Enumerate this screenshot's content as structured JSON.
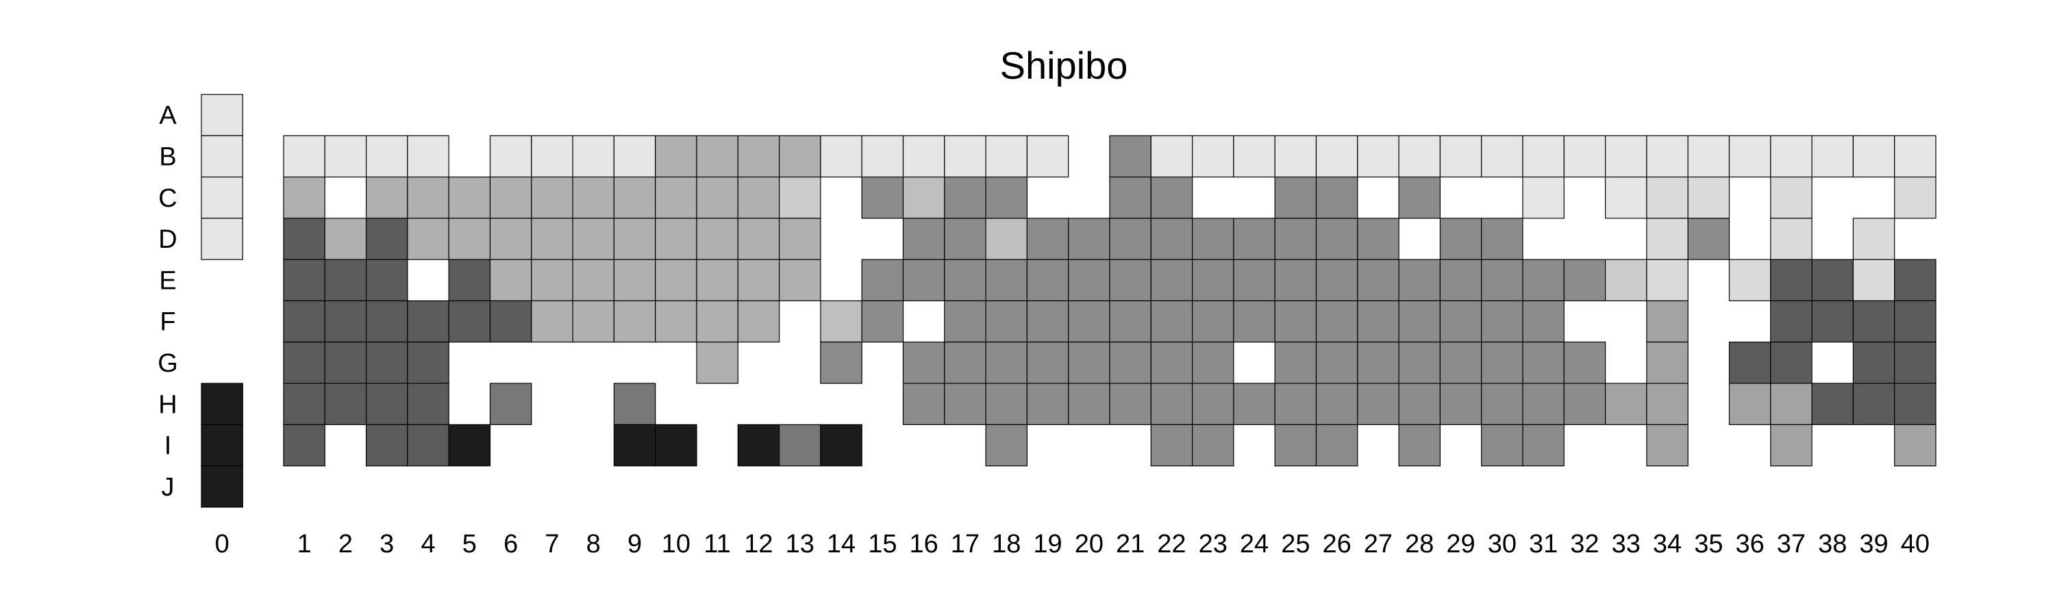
{
  "chart_data": {
    "type": "heatmap",
    "title": "Shipibo",
    "rows": [
      "A",
      "B",
      "C",
      "D",
      "E",
      "F",
      "G",
      "H",
      "I",
      "J"
    ],
    "columns": [
      "0",
      "1",
      "2",
      "3",
      "4",
      "5",
      "6",
      "7",
      "8",
      "9",
      "10",
      "11",
      "12",
      "13",
      "14",
      "15",
      "16",
      "17",
      "18",
      "19",
      "20",
      "21",
      "22",
      "23",
      "24",
      "25",
      "26",
      "27",
      "28",
      "29",
      "30",
      "31",
      "32",
      "33",
      "34",
      "35",
      "36",
      "37",
      "38",
      "39",
      "40"
    ],
    "grid": false,
    "legend": "none",
    "colors": {
      "1": "#e6e6e6",
      "2": "#dadada",
      "3": "#cccccc",
      "4": "#bfbfbf",
      "5": "#b0b0b0",
      "6": "#a3a3a3",
      "7": "#8c8c8c",
      "8": "#787878",
      "9": "#5c5c5c",
      "10": "#1c1c1c"
    },
    "cells": [
      {
        "col": "0",
        "row": "A",
        "v": 1
      },
      {
        "col": "0",
        "row": "B",
        "v": 1
      },
      {
        "col": "0",
        "row": "C",
        "v": 1
      },
      {
        "col": "0",
        "row": "D",
        "v": 1
      },
      {
        "col": "0",
        "row": "H",
        "v": 10
      },
      {
        "col": "0",
        "row": "I",
        "v": 10
      },
      {
        "col": "0",
        "row": "J",
        "v": 10
      },
      {
        "col": "1",
        "row": "B",
        "v": 1
      },
      {
        "col": "1",
        "row": "C",
        "v": 5
      },
      {
        "col": "1",
        "row": "D",
        "v": 9
      },
      {
        "col": "1",
        "row": "E",
        "v": 9
      },
      {
        "col": "1",
        "row": "F",
        "v": 9
      },
      {
        "col": "1",
        "row": "G",
        "v": 9
      },
      {
        "col": "1",
        "row": "H",
        "v": 9
      },
      {
        "col": "1",
        "row": "I",
        "v": 9
      },
      {
        "col": "2",
        "row": "B",
        "v": 1
      },
      {
        "col": "2",
        "row": "D",
        "v": 5
      },
      {
        "col": "2",
        "row": "E",
        "v": 9
      },
      {
        "col": "2",
        "row": "F",
        "v": 9
      },
      {
        "col": "2",
        "row": "G",
        "v": 9
      },
      {
        "col": "2",
        "row": "H",
        "v": 9
      },
      {
        "col": "3",
        "row": "B",
        "v": 1
      },
      {
        "col": "3",
        "row": "C",
        "v": 5
      },
      {
        "col": "3",
        "row": "D",
        "v": 9
      },
      {
        "col": "3",
        "row": "E",
        "v": 9
      },
      {
        "col": "3",
        "row": "F",
        "v": 9
      },
      {
        "col": "3",
        "row": "G",
        "v": 9
      },
      {
        "col": "3",
        "row": "H",
        "v": 9
      },
      {
        "col": "3",
        "row": "I",
        "v": 9
      },
      {
        "col": "4",
        "row": "B",
        "v": 1
      },
      {
        "col": "4",
        "row": "C",
        "v": 5
      },
      {
        "col": "4",
        "row": "D",
        "v": 5
      },
      {
        "col": "4",
        "row": "F",
        "v": 9
      },
      {
        "col": "4",
        "row": "G",
        "v": 9
      },
      {
        "col": "4",
        "row": "H",
        "v": 9
      },
      {
        "col": "4",
        "row": "I",
        "v": 9
      },
      {
        "col": "5",
        "row": "C",
        "v": 5
      },
      {
        "col": "5",
        "row": "D",
        "v": 5
      },
      {
        "col": "5",
        "row": "E",
        "v": 9
      },
      {
        "col": "5",
        "row": "F",
        "v": 9
      },
      {
        "col": "5",
        "row": "I",
        "v": 10
      },
      {
        "col": "6",
        "row": "B",
        "v": 1
      },
      {
        "col": "6",
        "row": "C",
        "v": 5
      },
      {
        "col": "6",
        "row": "D",
        "v": 5
      },
      {
        "col": "6",
        "row": "E",
        "v": 5
      },
      {
        "col": "6",
        "row": "F",
        "v": 9
      },
      {
        "col": "6",
        "row": "H",
        "v": 8
      },
      {
        "col": "7",
        "row": "B",
        "v": 1
      },
      {
        "col": "7",
        "row": "C",
        "v": 5
      },
      {
        "col": "7",
        "row": "D",
        "v": 5
      },
      {
        "col": "7",
        "row": "E",
        "v": 5
      },
      {
        "col": "7",
        "row": "F",
        "v": 5
      },
      {
        "col": "8",
        "row": "B",
        "v": 1
      },
      {
        "col": "8",
        "row": "C",
        "v": 5
      },
      {
        "col": "8",
        "row": "D",
        "v": 5
      },
      {
        "col": "8",
        "row": "E",
        "v": 5
      },
      {
        "col": "8",
        "row": "F",
        "v": 5
      },
      {
        "col": "9",
        "row": "B",
        "v": 1
      },
      {
        "col": "9",
        "row": "C",
        "v": 5
      },
      {
        "col": "9",
        "row": "D",
        "v": 5
      },
      {
        "col": "9",
        "row": "E",
        "v": 5
      },
      {
        "col": "9",
        "row": "F",
        "v": 5
      },
      {
        "col": "9",
        "row": "H",
        "v": 8
      },
      {
        "col": "9",
        "row": "I",
        "v": 10
      },
      {
        "col": "10",
        "row": "B",
        "v": 5
      },
      {
        "col": "10",
        "row": "C",
        "v": 5
      },
      {
        "col": "10",
        "row": "D",
        "v": 5
      },
      {
        "col": "10",
        "row": "E",
        "v": 5
      },
      {
        "col": "10",
        "row": "F",
        "v": 5
      },
      {
        "col": "10",
        "row": "I",
        "v": 10
      },
      {
        "col": "11",
        "row": "B",
        "v": 5
      },
      {
        "col": "11",
        "row": "C",
        "v": 5
      },
      {
        "col": "11",
        "row": "D",
        "v": 5
      },
      {
        "col": "11",
        "row": "E",
        "v": 5
      },
      {
        "col": "11",
        "row": "F",
        "v": 5
      },
      {
        "col": "11",
        "row": "G",
        "v": 5
      },
      {
        "col": "12",
        "row": "B",
        "v": 5
      },
      {
        "col": "12",
        "row": "C",
        "v": 5
      },
      {
        "col": "12",
        "row": "D",
        "v": 5
      },
      {
        "col": "12",
        "row": "E",
        "v": 5
      },
      {
        "col": "12",
        "row": "F",
        "v": 5
      },
      {
        "col": "12",
        "row": "I",
        "v": 10
      },
      {
        "col": "13",
        "row": "B",
        "v": 5
      },
      {
        "col": "13",
        "row": "C",
        "v": 3
      },
      {
        "col": "13",
        "row": "D",
        "v": 5
      },
      {
        "col": "13",
        "row": "E",
        "v": 5
      },
      {
        "col": "13",
        "row": "I",
        "v": 8
      },
      {
        "col": "14",
        "row": "B",
        "v": 1
      },
      {
        "col": "14",
        "row": "F",
        "v": 4
      },
      {
        "col": "14",
        "row": "G",
        "v": 7
      },
      {
        "col": "14",
        "row": "I",
        "v": 10
      },
      {
        "col": "15",
        "row": "B",
        "v": 1
      },
      {
        "col": "15",
        "row": "C",
        "v": 7
      },
      {
        "col": "15",
        "row": "E",
        "v": 7
      },
      {
        "col": "15",
        "row": "F",
        "v": 7
      },
      {
        "col": "16",
        "row": "B",
        "v": 1
      },
      {
        "col": "16",
        "row": "C",
        "v": 4
      },
      {
        "col": "16",
        "row": "D",
        "v": 7
      },
      {
        "col": "16",
        "row": "E",
        "v": 7
      },
      {
        "col": "16",
        "row": "G",
        "v": 7
      },
      {
        "col": "16",
        "row": "H",
        "v": 7
      },
      {
        "col": "17",
        "row": "B",
        "v": 1
      },
      {
        "col": "17",
        "row": "C",
        "v": 7
      },
      {
        "col": "17",
        "row": "D",
        "v": 7
      },
      {
        "col": "17",
        "row": "E",
        "v": 7
      },
      {
        "col": "17",
        "row": "F",
        "v": 7
      },
      {
        "col": "17",
        "row": "G",
        "v": 7
      },
      {
        "col": "17",
        "row": "H",
        "v": 7
      },
      {
        "col": "18",
        "row": "B",
        "v": 1
      },
      {
        "col": "18",
        "row": "C",
        "v": 7
      },
      {
        "col": "18",
        "row": "D",
        "v": 4
      },
      {
        "col": "18",
        "row": "E",
        "v": 7
      },
      {
        "col": "18",
        "row": "F",
        "v": 7
      },
      {
        "col": "18",
        "row": "G",
        "v": 7
      },
      {
        "col": "18",
        "row": "H",
        "v": 7
      },
      {
        "col": "18",
        "row": "I",
        "v": 7
      },
      {
        "col": "19",
        "row": "B",
        "v": 1
      },
      {
        "col": "19",
        "row": "D",
        "v": 7
      },
      {
        "col": "19",
        "row": "E",
        "v": 7
      },
      {
        "col": "19",
        "row": "F",
        "v": 7
      },
      {
        "col": "19",
        "row": "G",
        "v": 7
      },
      {
        "col": "19",
        "row": "H",
        "v": 7
      },
      {
        "col": "20",
        "row": "D",
        "v": 7
      },
      {
        "col": "20",
        "row": "E",
        "v": 7
      },
      {
        "col": "20",
        "row": "F",
        "v": 7
      },
      {
        "col": "20",
        "row": "G",
        "v": 7
      },
      {
        "col": "20",
        "row": "H",
        "v": 7
      },
      {
        "col": "21",
        "row": "B",
        "v": 7
      },
      {
        "col": "21",
        "row": "C",
        "v": 7
      },
      {
        "col": "21",
        "row": "D",
        "v": 7
      },
      {
        "col": "21",
        "row": "E",
        "v": 7
      },
      {
        "col": "21",
        "row": "F",
        "v": 7
      },
      {
        "col": "21",
        "row": "G",
        "v": 7
      },
      {
        "col": "21",
        "row": "H",
        "v": 7
      },
      {
        "col": "22",
        "row": "B",
        "v": 1
      },
      {
        "col": "22",
        "row": "C",
        "v": 7
      },
      {
        "col": "22",
        "row": "D",
        "v": 7
      },
      {
        "col": "22",
        "row": "E",
        "v": 7
      },
      {
        "col": "22",
        "row": "F",
        "v": 7
      },
      {
        "col": "22",
        "row": "G",
        "v": 7
      },
      {
        "col": "22",
        "row": "H",
        "v": 7
      },
      {
        "col": "22",
        "row": "I",
        "v": 7
      },
      {
        "col": "23",
        "row": "B",
        "v": 1
      },
      {
        "col": "23",
        "row": "D",
        "v": 7
      },
      {
        "col": "23",
        "row": "E",
        "v": 7
      },
      {
        "col": "23",
        "row": "F",
        "v": 7
      },
      {
        "col": "23",
        "row": "G",
        "v": 7
      },
      {
        "col": "23",
        "row": "H",
        "v": 7
      },
      {
        "col": "23",
        "row": "I",
        "v": 7
      },
      {
        "col": "24",
        "row": "B",
        "v": 1
      },
      {
        "col": "24",
        "row": "D",
        "v": 7
      },
      {
        "col": "24",
        "row": "E",
        "v": 7
      },
      {
        "col": "24",
        "row": "F",
        "v": 7
      },
      {
        "col": "24",
        "row": "H",
        "v": 7
      },
      {
        "col": "25",
        "row": "B",
        "v": 1
      },
      {
        "col": "25",
        "row": "C",
        "v": 7
      },
      {
        "col": "25",
        "row": "D",
        "v": 7
      },
      {
        "col": "25",
        "row": "E",
        "v": 7
      },
      {
        "col": "25",
        "row": "F",
        "v": 7
      },
      {
        "col": "25",
        "row": "G",
        "v": 7
      },
      {
        "col": "25",
        "row": "H",
        "v": 7
      },
      {
        "col": "25",
        "row": "I",
        "v": 7
      },
      {
        "col": "26",
        "row": "B",
        "v": 1
      },
      {
        "col": "26",
        "row": "C",
        "v": 7
      },
      {
        "col": "26",
        "row": "D",
        "v": 7
      },
      {
        "col": "26",
        "row": "E",
        "v": 7
      },
      {
        "col": "26",
        "row": "F",
        "v": 7
      },
      {
        "col": "26",
        "row": "G",
        "v": 7
      },
      {
        "col": "26",
        "row": "H",
        "v": 7
      },
      {
        "col": "26",
        "row": "I",
        "v": 7
      },
      {
        "col": "27",
        "row": "B",
        "v": 1
      },
      {
        "col": "27",
        "row": "D",
        "v": 7
      },
      {
        "col": "27",
        "row": "E",
        "v": 7
      },
      {
        "col": "27",
        "row": "F",
        "v": 7
      },
      {
        "col": "27",
        "row": "G",
        "v": 7
      },
      {
        "col": "27",
        "row": "H",
        "v": 7
      },
      {
        "col": "28",
        "row": "B",
        "v": 1
      },
      {
        "col": "28",
        "row": "C",
        "v": 7
      },
      {
        "col": "28",
        "row": "E",
        "v": 7
      },
      {
        "col": "28",
        "row": "F",
        "v": 7
      },
      {
        "col": "28",
        "row": "G",
        "v": 7
      },
      {
        "col": "28",
        "row": "H",
        "v": 7
      },
      {
        "col": "28",
        "row": "I",
        "v": 7
      },
      {
        "col": "29",
        "row": "B",
        "v": 1
      },
      {
        "col": "29",
        "row": "D",
        "v": 7
      },
      {
        "col": "29",
        "row": "E",
        "v": 7
      },
      {
        "col": "29",
        "row": "F",
        "v": 7
      },
      {
        "col": "29",
        "row": "G",
        "v": 7
      },
      {
        "col": "29",
        "row": "H",
        "v": 7
      },
      {
        "col": "30",
        "row": "B",
        "v": 1
      },
      {
        "col": "30",
        "row": "D",
        "v": 7
      },
      {
        "col": "30",
        "row": "E",
        "v": 7
      },
      {
        "col": "30",
        "row": "F",
        "v": 7
      },
      {
        "col": "30",
        "row": "G",
        "v": 7
      },
      {
        "col": "30",
        "row": "H",
        "v": 7
      },
      {
        "col": "30",
        "row": "I",
        "v": 7
      },
      {
        "col": "31",
        "row": "B",
        "v": 1
      },
      {
        "col": "31",
        "row": "C",
        "v": 1
      },
      {
        "col": "31",
        "row": "E",
        "v": 7
      },
      {
        "col": "31",
        "row": "F",
        "v": 7
      },
      {
        "col": "31",
        "row": "G",
        "v": 7
      },
      {
        "col": "31",
        "row": "H",
        "v": 7
      },
      {
        "col": "31",
        "row": "I",
        "v": 7
      },
      {
        "col": "32",
        "row": "B",
        "v": 1
      },
      {
        "col": "32",
        "row": "E",
        "v": 7
      },
      {
        "col": "32",
        "row": "G",
        "v": 7
      },
      {
        "col": "32",
        "row": "H",
        "v": 7
      },
      {
        "col": "33",
        "row": "B",
        "v": 1
      },
      {
        "col": "33",
        "row": "C",
        "v": 1
      },
      {
        "col": "33",
        "row": "E",
        "v": 3
      },
      {
        "col": "33",
        "row": "H",
        "v": 6
      },
      {
        "col": "34",
        "row": "B",
        "v": 1
      },
      {
        "col": "34",
        "row": "C",
        "v": 2
      },
      {
        "col": "34",
        "row": "D",
        "v": 2
      },
      {
        "col": "34",
        "row": "E",
        "v": 2
      },
      {
        "col": "34",
        "row": "F",
        "v": 6
      },
      {
        "col": "34",
        "row": "G",
        "v": 6
      },
      {
        "col": "34",
        "row": "H",
        "v": 6
      },
      {
        "col": "34",
        "row": "I",
        "v": 6
      },
      {
        "col": "35",
        "row": "B",
        "v": 1
      },
      {
        "col": "35",
        "row": "C",
        "v": 2
      },
      {
        "col": "35",
        "row": "D",
        "v": 7
      },
      {
        "col": "36",
        "row": "B",
        "v": 1
      },
      {
        "col": "36",
        "row": "E",
        "v": 2
      },
      {
        "col": "36",
        "row": "G",
        "v": 9
      },
      {
        "col": "36",
        "row": "H",
        "v": 6
      },
      {
        "col": "37",
        "row": "B",
        "v": 1
      },
      {
        "col": "37",
        "row": "C",
        "v": 2
      },
      {
        "col": "37",
        "row": "D",
        "v": 2
      },
      {
        "col": "37",
        "row": "E",
        "v": 9
      },
      {
        "col": "37",
        "row": "F",
        "v": 9
      },
      {
        "col": "37",
        "row": "G",
        "v": 9
      },
      {
        "col": "37",
        "row": "H",
        "v": 6
      },
      {
        "col": "37",
        "row": "I",
        "v": 6
      },
      {
        "col": "38",
        "row": "B",
        "v": 1
      },
      {
        "col": "38",
        "row": "E",
        "v": 9
      },
      {
        "col": "38",
        "row": "F",
        "v": 9
      },
      {
        "col": "38",
        "row": "H",
        "v": 9
      },
      {
        "col": "39",
        "row": "B",
        "v": 1
      },
      {
        "col": "39",
        "row": "D",
        "v": 2
      },
      {
        "col": "39",
        "row": "E",
        "v": 2
      },
      {
        "col": "39",
        "row": "F",
        "v": 9
      },
      {
        "col": "39",
        "row": "G",
        "v": 9
      },
      {
        "col": "39",
        "row": "H",
        "v": 9
      },
      {
        "col": "40",
        "row": "B",
        "v": 1
      },
      {
        "col": "40",
        "row": "C",
        "v": 2
      },
      {
        "col": "40",
        "row": "E",
        "v": 9
      },
      {
        "col": "40",
        "row": "F",
        "v": 9
      },
      {
        "col": "40",
        "row": "G",
        "v": 9
      },
      {
        "col": "40",
        "row": "H",
        "v": 9
      },
      {
        "col": "40",
        "row": "I",
        "v": 6
      }
    ]
  }
}
